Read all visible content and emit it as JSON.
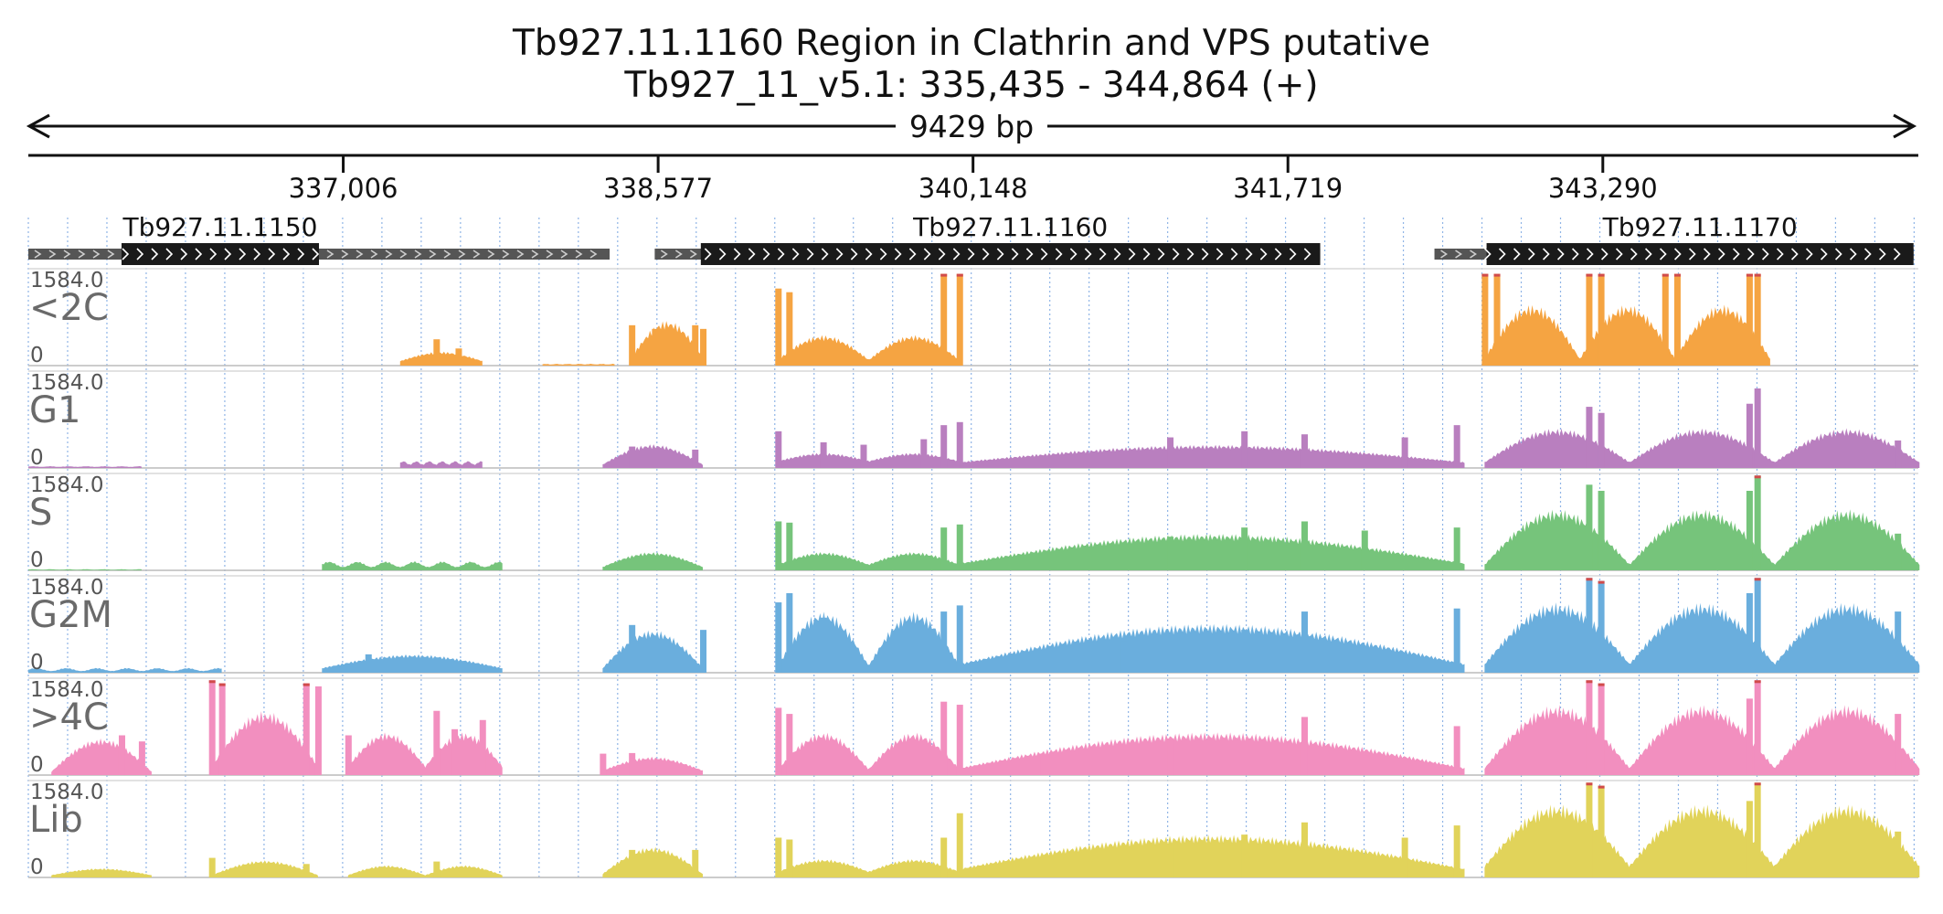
{
  "chart_data": {
    "type": "area",
    "title": "Tb927.11.1160  Region in Clathrin and VPS  putative",
    "subtitle": "Tb927_11_v5.1: 335,435 - 344,864 (+)",
    "span_label": "9429 bp",
    "region": {
      "start": 335435,
      "end": 344864,
      "strand": "+"
    },
    "tick_labels": [
      "337,006",
      "338,577",
      "340,148",
      "341,719",
      "343,290"
    ],
    "tick_positions": [
      337006,
      338577,
      340148,
      341719,
      343290
    ],
    "grid": true,
    "genes": [
      {
        "name": "Tb927.11.1150",
        "utr": [
          335435,
          338335
        ],
        "cds": [
          335900,
          336885
        ]
      },
      {
        "name": "Tb927.11.1160",
        "utr": [
          338560,
          341880
        ],
        "cds": [
          338790,
          341880
        ]
      },
      {
        "name": "Tb927.11.1170",
        "utr": [
          342450,
          344840
        ],
        "cds": [
          342710,
          344840
        ]
      }
    ],
    "y_max_label": "1584.0",
    "y_min_label": "0",
    "ylim": [
      0,
      1584
    ],
    "series": [
      {
        "name": "<2C",
        "color": "#f5a442",
        "segments": [
          {
            "start": 337290,
            "end": 337700,
            "shape": "hump",
            "base": 80,
            "peak": 230,
            "spikes": [
              [
                337470,
                430
              ],
              [
                337580,
                280
              ]
            ]
          },
          {
            "start": 338000,
            "end": 338360,
            "shape": "flat",
            "base": 20,
            "peak": 30
          },
          {
            "start": 338445,
            "end": 338800,
            "shape": "hump",
            "base": 150,
            "peak": 740,
            "spikes": [
              [
                338445,
                660
              ],
              [
                338560,
                600
              ],
              [
                338760,
                660
              ],
              [
                338800,
                600
              ]
            ]
          },
          {
            "start": 339175,
            "end": 340080,
            "shape": "bimodal",
            "base": 100,
            "peak": 500,
            "spikes": [
              [
                339175,
                1260
              ],
              [
                339230,
                1200
              ],
              [
                340000,
                1500
              ],
              [
                340080,
                1500
              ]
            ]
          },
          {
            "start": 342700,
            "end": 344125,
            "shape": "trimodal",
            "base": 120,
            "peak": 1000,
            "spikes": [
              [
                342700,
                1500
              ],
              [
                342760,
                1500
              ],
              [
                343220,
                1500
              ],
              [
                343280,
                1500
              ],
              [
                343600,
                1500
              ],
              [
                343660,
                1500
              ],
              [
                344020,
                1500
              ],
              [
                344060,
                1500
              ]
            ]
          }
        ]
      },
      {
        "name": "G1",
        "color": "#b97fbf",
        "segments": [
          {
            "start": 335435,
            "end": 336000,
            "shape": "flat",
            "base": 20,
            "peak": 30
          },
          {
            "start": 337290,
            "end": 337700,
            "shape": "flat",
            "base": 60,
            "peak": 120
          },
          {
            "start": 338300,
            "end": 338800,
            "shape": "hump",
            "base": 60,
            "peak": 390,
            "spikes": [
              [
                338445,
                350
              ],
              [
                338760,
                300
              ]
            ]
          },
          {
            "start": 339175,
            "end": 340080,
            "shape": "bimodal",
            "base": 120,
            "peak": 250,
            "spikes": [
              [
                339175,
                600
              ],
              [
                339400,
                420
              ],
              [
                339600,
                380
              ],
              [
                339900,
                470
              ],
              [
                340000,
                700
              ],
              [
                340080,
                750
              ]
            ]
          },
          {
            "start": 340080,
            "end": 342600,
            "shape": "hump",
            "base": 100,
            "peak": 380,
            "spikes": [
              [
                341130,
                500
              ],
              [
                341500,
                600
              ],
              [
                341800,
                550
              ],
              [
                342300,
                500
              ],
              [
                342560,
                700
              ]
            ]
          },
          {
            "start": 342700,
            "end": 344870,
            "shape": "trimodal",
            "base": 100,
            "peak": 650,
            "spikes": [
              [
                343220,
                1000
              ],
              [
                343280,
                900
              ],
              [
                344060,
                1300
              ],
              [
                344020,
                1050
              ],
              [
                344760,
                450
              ]
            ]
          }
        ]
      },
      {
        "name": "S",
        "color": "#76c47b",
        "segments": [
          {
            "start": 335435,
            "end": 336000,
            "shape": "flat",
            "base": 10,
            "peak": 20
          },
          {
            "start": 336900,
            "end": 337800,
            "shape": "flat",
            "base": 60,
            "peak": 150
          },
          {
            "start": 338300,
            "end": 338800,
            "shape": "hump",
            "base": 60,
            "peak": 300
          },
          {
            "start": 339175,
            "end": 340080,
            "shape": "bimodal",
            "base": 100,
            "peak": 300,
            "spikes": [
              [
                339175,
                800
              ],
              [
                339230,
                780
              ],
              [
                340000,
                700
              ],
              [
                340080,
                750
              ]
            ]
          },
          {
            "start": 340080,
            "end": 342600,
            "shape": "hump",
            "base": 120,
            "peak": 600,
            "spikes": [
              [
                341130,
                550
              ],
              [
                341500,
                700
              ],
              [
                341800,
                800
              ],
              [
                342100,
                650
              ],
              [
                342560,
                700
              ]
            ]
          },
          {
            "start": 342700,
            "end": 344870,
            "shape": "trimodal",
            "base": 100,
            "peak": 1000,
            "spikes": [
              [
                343220,
                1400
              ],
              [
                343280,
                1300
              ],
              [
                344060,
                1550
              ],
              [
                344020,
                1300
              ],
              [
                344760,
                600
              ]
            ]
          }
        ]
      },
      {
        "name": "G2M",
        "color": "#6aaedd",
        "segments": [
          {
            "start": 335435,
            "end": 336400,
            "shape": "flat",
            "base": 30,
            "peak": 80
          },
          {
            "start": 336900,
            "end": 337800,
            "shape": "hump",
            "base": 80,
            "peak": 300,
            "spikes": [
              [
                337130,
                300
              ],
              [
                337470,
                250
              ]
            ]
          },
          {
            "start": 338300,
            "end": 338800,
            "shape": "hump",
            "base": 80,
            "peak": 700,
            "spikes": [
              [
                338445,
                780
              ],
              [
                338800,
                700
              ]
            ]
          },
          {
            "start": 339175,
            "end": 340080,
            "shape": "bimodal",
            "base": 120,
            "peak": 1000,
            "spikes": [
              [
                339175,
                1150
              ],
              [
                339230,
                1300
              ],
              [
                339400,
                900
              ],
              [
                340000,
                1000
              ],
              [
                340080,
                1100
              ]
            ]
          },
          {
            "start": 340080,
            "end": 342600,
            "shape": "hump",
            "base": 150,
            "peak": 800,
            "spikes": [
              [
                340900,
                520
              ],
              [
                341130,
                600
              ],
              [
                341500,
                700
              ],
              [
                341800,
                1000
              ],
              [
                342560,
                1050
              ]
            ]
          },
          {
            "start": 342700,
            "end": 344870,
            "shape": "trimodal",
            "base": 150,
            "peak": 1150,
            "spikes": [
              [
                343220,
                1550
              ],
              [
                343280,
                1500
              ],
              [
                344060,
                1550
              ],
              [
                344020,
                1300
              ],
              [
                344760,
                1000
              ]
            ]
          }
        ]
      },
      {
        "name": ">4C",
        "color": "#f28fbf",
        "segments": [
          {
            "start": 335550,
            "end": 336050,
            "shape": "hump",
            "base": 60,
            "peak": 600,
            "spikes": [
              [
                335900,
                650
              ],
              [
                336000,
                550
              ]
            ]
          },
          {
            "start": 336350,
            "end": 336880,
            "shape": "hump",
            "base": 150,
            "peak": 1050,
            "spikes": [
              [
                336350,
                1550
              ],
              [
                336400,
                1500
              ],
              [
                336820,
                1500
              ],
              [
                336880,
                1450
              ]
            ]
          },
          {
            "start": 337030,
            "end": 337800,
            "shape": "bimodal",
            "base": 150,
            "peak": 700,
            "spikes": [
              [
                337030,
                650
              ],
              [
                337470,
                1050
              ],
              [
                337560,
                750
              ],
              [
                337700,
                900
              ]
            ]
          },
          {
            "start": 338300,
            "end": 338800,
            "shape": "hump",
            "base": 80,
            "peak": 300,
            "spikes": [
              [
                338300,
                350
              ],
              [
                338445,
                360
              ]
            ]
          },
          {
            "start": 339175,
            "end": 340080,
            "shape": "bimodal",
            "base": 100,
            "peak": 700,
            "spikes": [
              [
                339175,
                1100
              ],
              [
                339230,
                1000
              ],
              [
                340000,
                1200
              ],
              [
                340080,
                1150
              ]
            ]
          },
          {
            "start": 340080,
            "end": 342600,
            "shape": "hump",
            "base": 120,
            "peak": 700,
            "spikes": [
              [
                340500,
                300
              ],
              [
                341130,
                600
              ],
              [
                341800,
                950
              ],
              [
                342560,
                800
              ]
            ]
          },
          {
            "start": 342700,
            "end": 344870,
            "shape": "trimodal",
            "base": 120,
            "peak": 1150,
            "spikes": [
              [
                343220,
                1550
              ],
              [
                343280,
                1500
              ],
              [
                344060,
                1550
              ],
              [
                344020,
                1250
              ],
              [
                344760,
                1000
              ]
            ]
          }
        ]
      },
      {
        "name": "Lib",
        "color": "#e1d35a",
        "segments": [
          {
            "start": 335550,
            "end": 336050,
            "shape": "hump",
            "base": 40,
            "peak": 150
          },
          {
            "start": 336350,
            "end": 336880,
            "shape": "hump",
            "base": 40,
            "peak": 280,
            "spikes": [
              [
                336350,
                320
              ],
              [
                336820,
                220
              ]
            ]
          },
          {
            "start": 337030,
            "end": 337800,
            "shape": "bimodal",
            "base": 40,
            "peak": 200,
            "spikes": [
              [
                337470,
                260
              ]
            ]
          },
          {
            "start": 338300,
            "end": 338800,
            "shape": "hump",
            "base": 60,
            "peak": 500,
            "spikes": [
              [
                338445,
                450
              ],
              [
                338760,
                450
              ]
            ]
          },
          {
            "start": 339175,
            "end": 340080,
            "shape": "bimodal",
            "base": 100,
            "peak": 300,
            "spikes": [
              [
                339175,
                650
              ],
              [
                339230,
                620
              ],
              [
                340000,
                650
              ],
              [
                340080,
                1050
              ]
            ]
          },
          {
            "start": 340080,
            "end": 342600,
            "shape": "hump",
            "base": 150,
            "peak": 700,
            "spikes": [
              [
                341130,
                550
              ],
              [
                341500,
                700
              ],
              [
                341800,
                900
              ],
              [
                342300,
                650
              ],
              [
                342560,
                850
              ]
            ]
          },
          {
            "start": 342700,
            "end": 344870,
            "shape": "trimodal",
            "base": 200,
            "peak": 1200,
            "spikes": [
              [
                343220,
                1550
              ],
              [
                343280,
                1500
              ],
              [
                344060,
                1550
              ],
              [
                344020,
                1250
              ],
              [
                344760,
                750
              ]
            ]
          }
        ]
      }
    ]
  }
}
